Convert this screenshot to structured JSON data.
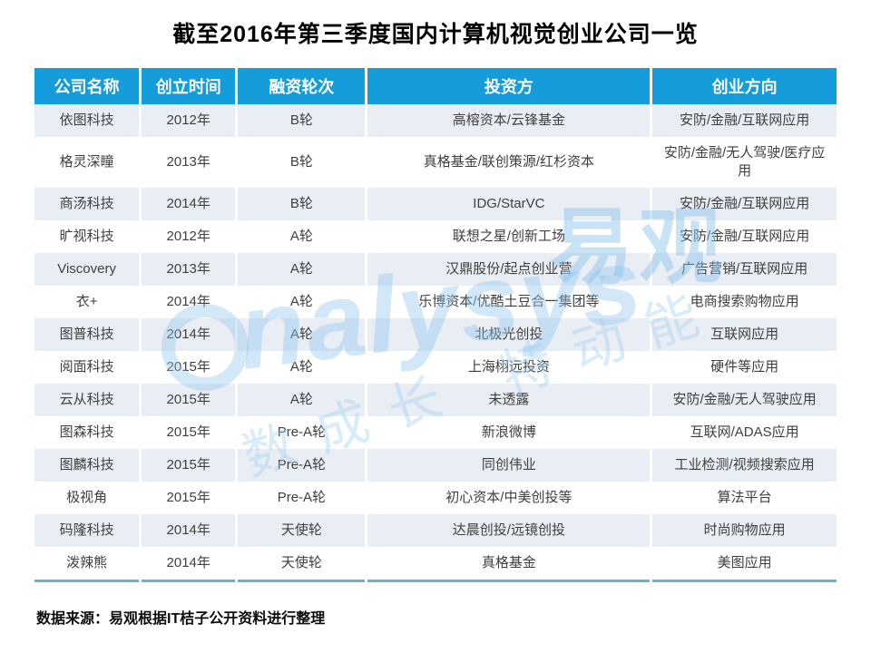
{
  "title": "截至2016年第三季度国内计算机视觉创业公司一览",
  "chart_data": {
    "type": "table",
    "title": "截至2016年第三季度国内计算机视觉创业公司一览",
    "columns": [
      "公司名称",
      "创立时间",
      "融资轮次",
      "投资方",
      "创业方向"
    ],
    "rows": [
      [
        "依图科技",
        "2012年",
        "B轮",
        "高榕资本/云锋基金",
        "安防/金融/互联网应用"
      ],
      [
        "格灵深瞳",
        "2013年",
        "B轮",
        "真格基金/联创策源/红杉资本",
        "安防/金融/无人驾驶/医疗应用"
      ],
      [
        "商汤科技",
        "2014年",
        "B轮",
        "IDG/StarVC",
        "安防/金融/互联网应用"
      ],
      [
        "旷视科技",
        "2012年",
        "A轮",
        "联想之星/创新工场",
        "安防/金融/互联网应用"
      ],
      [
        "Viscovery",
        "2013年",
        "A轮",
        "汉鼎股份/起点创业营",
        "广告营销/互联网应用"
      ],
      [
        "衣+",
        "2014年",
        "A轮",
        "乐博资本/优酷土豆合一集团等",
        "电商搜索购物应用"
      ],
      [
        "图普科技",
        "2014年",
        "A轮",
        "北极光创投",
        "互联网应用"
      ],
      [
        "阅面科技",
        "2015年",
        "A轮",
        "上海栩远投资",
        "硬件等应用"
      ],
      [
        "云从科技",
        "2015年",
        "A轮",
        "未透露",
        "安防/金融/无人驾驶应用"
      ],
      [
        "图森科技",
        "2015年",
        "Pre-A轮",
        "新浪微博",
        "互联网/ADAS应用"
      ],
      [
        "图麟科技",
        "2015年",
        "Pre-A轮",
        "同创伟业",
        "工业检测/视频搜索应用"
      ],
      [
        "极视角",
        "2015年",
        "Pre-A轮",
        "初心资本/中美创投等",
        "算法平台"
      ],
      [
        "码隆科技",
        "2014年",
        "天使轮",
        "达晨创投/远镜创投",
        "时尚购物应用"
      ],
      [
        "泼辣熊",
        "2014年",
        "天使轮",
        "真格基金",
        "美图应用"
      ]
    ],
    "layout": {
      "striped_rows": "odd rows shaded",
      "header_position": "top"
    }
  },
  "footer": {
    "source_note": "数据来源：易观根据IT桔子公开资料进行整理"
  },
  "watermark": {
    "brand_en": "nalysys",
    "brand_cn": "易观",
    "tagline_left": "数成长",
    "tagline_right": "特动能"
  },
  "colors": {
    "header_bg": "#149cdb",
    "header_text": "#ffffff",
    "row_alt_bg": "#e9edf4",
    "body_text": "#3f3f3f",
    "bottom_border": "#5fb5d2",
    "watermark_blue": "#94c9ee"
  }
}
